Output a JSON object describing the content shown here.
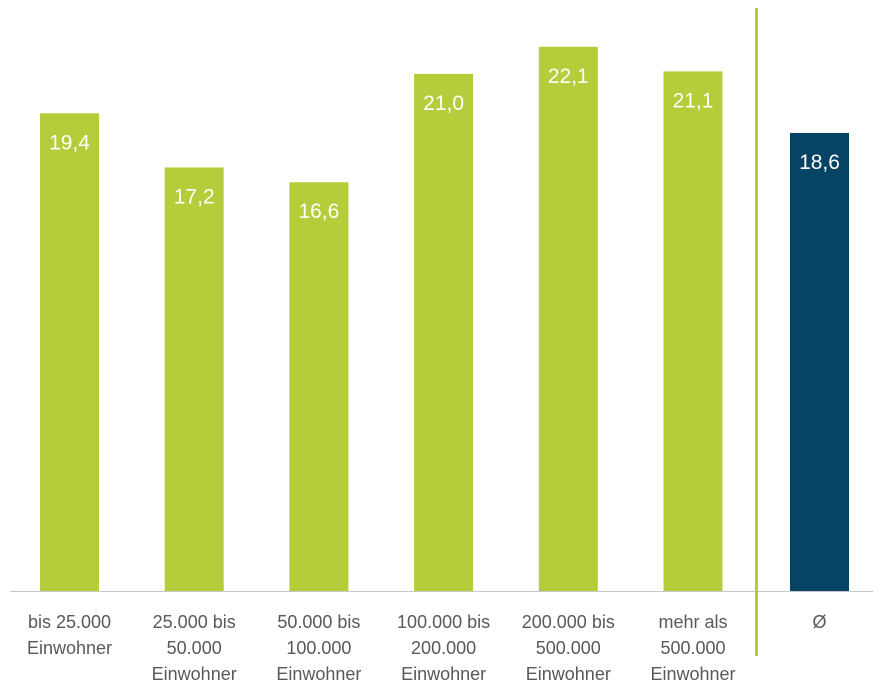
{
  "chart_data": {
    "type": "bar",
    "categories": [
      [
        "bis 25.000",
        "Einwohner"
      ],
      [
        "25.000 bis",
        "50.000",
        "Einwohner"
      ],
      [
        "50.000 bis",
        "100.000",
        "Einwohner"
      ],
      [
        "100.000 bis",
        "200.000",
        "Einwohner"
      ],
      [
        "200.000 bis",
        "500.000",
        "Einwohner"
      ],
      [
        "mehr als",
        "500.000",
        "Einwohner"
      ],
      [
        "Ø"
      ]
    ],
    "values": [
      19.4,
      17.2,
      16.6,
      21.0,
      22.1,
      21.1,
      18.6
    ],
    "value_labels": [
      "19,4",
      "17,2",
      "16,6",
      "21,0",
      "22,1",
      "21,1",
      "18,6"
    ],
    "colors": [
      "#b5cc3b",
      "#b5cc3b",
      "#b5cc3b",
      "#b5cc3b",
      "#b5cc3b",
      "#b5cc3b",
      "#064466"
    ],
    "separator_color": "#b5cc3b",
    "axis_color": "#c8c8c8",
    "label_color": "#595959",
    "value_label_color": "#ffffff",
    "ylim": [
      0,
      24
    ],
    "grid": false,
    "title": "",
    "xlabel": "",
    "ylabel": ""
  }
}
